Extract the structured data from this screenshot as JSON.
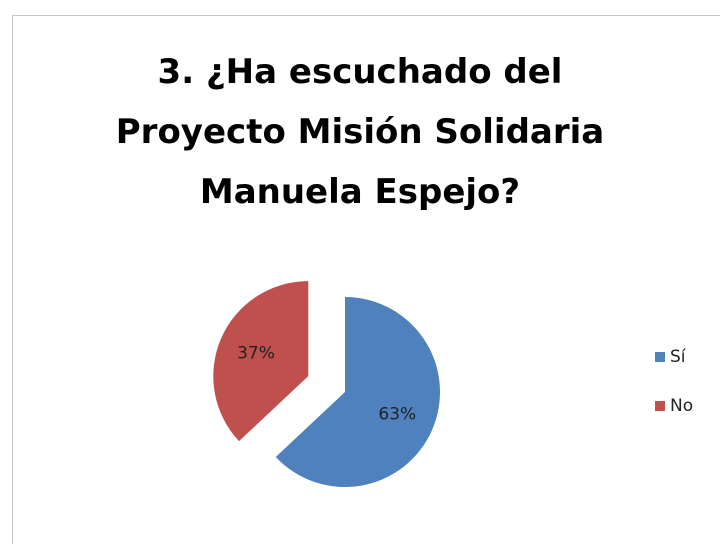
{
  "chart_data": {
    "type": "pie",
    "title": "3. ¿Ha escuchado del Proyecto Misión Solidaria Manuela Espejo?",
    "categories": [
      "Sí",
      "No"
    ],
    "values": [
      63,
      37
    ],
    "value_labels": [
      "63%",
      "37%"
    ],
    "colors": [
      "#4f81bd",
      "#c0504d"
    ],
    "legend": "right"
  }
}
